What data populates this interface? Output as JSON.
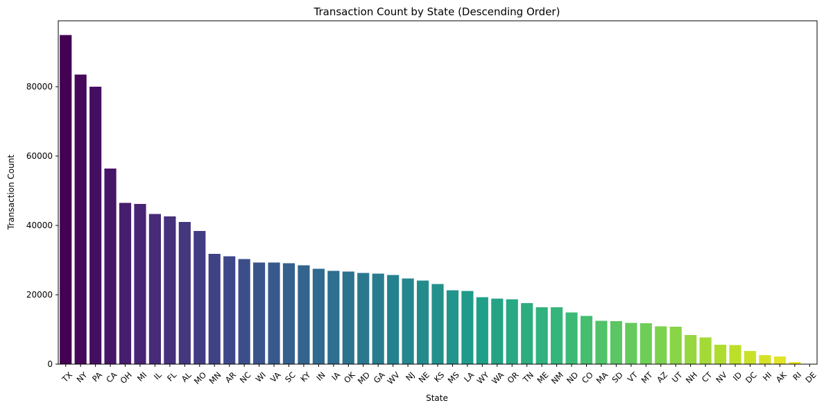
{
  "chart_data": {
    "type": "bar",
    "title": "Transaction Count by State (Descending Order)",
    "xlabel": "State",
    "ylabel": "Transaction Count",
    "ylim": [
      0,
      99000
    ],
    "yticks": [
      0,
      20000,
      40000,
      60000,
      80000
    ],
    "grid": false,
    "legend": "none",
    "colormap": "viridis",
    "categories": [
      "TX",
      "NY",
      "PA",
      "CA",
      "OH",
      "MI",
      "IL",
      "FL",
      "AL",
      "MO",
      "MN",
      "AR",
      "NC",
      "WI",
      "VA",
      "SC",
      "KY",
      "IN",
      "IA",
      "OK",
      "MD",
      "GA",
      "WV",
      "NJ",
      "NE",
      "KS",
      "MS",
      "LA",
      "WY",
      "WA",
      "OR",
      "TN",
      "ME",
      "NM",
      "ND",
      "CO",
      "MA",
      "SD",
      "VT",
      "MT",
      "AZ",
      "UT",
      "NH",
      "CT",
      "NV",
      "ID",
      "DC",
      "HI",
      "AK",
      "RI",
      "DE"
    ],
    "values": [
      94900,
      83500,
      80000,
      56400,
      46500,
      46200,
      43300,
      42600,
      41000,
      38400,
      31800,
      31100,
      30300,
      29300,
      29300,
      29100,
      28500,
      27500,
      26900,
      26700,
      26300,
      26100,
      25700,
      24700,
      24100,
      23100,
      21300,
      21100,
      19300,
      18900,
      18700,
      17600,
      16400,
      16400,
      14900,
      13900,
      12500,
      12400,
      11900,
      11800,
      10900,
      10800,
      8400,
      7700,
      5600,
      5500,
      3800,
      2600,
      2200,
      600,
      100
    ]
  }
}
